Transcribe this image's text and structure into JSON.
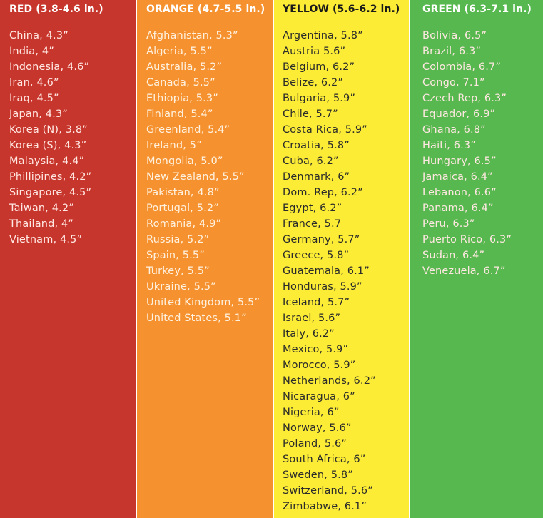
{
  "columns": [
    {
      "id": "red",
      "header": "RED (3.8-4.6 in.)",
      "color": "#c7362c",
      "entries": [
        "China, 4.3”",
        "India, 4”",
        "Indonesia, 4.6”",
        "Iran, 4.6”",
        "Iraq, 4.5”",
        "Japan, 4.3”",
        "Korea (N), 3.8”",
        "Korea (S), 4.3”",
        "Malaysia, 4.4”",
        "Phillipines, 4.2”",
        "Singapore, 4.5”",
        "Taiwan, 4.2”",
        "Thailand, 4”",
        "Vietnam, 4.5”"
      ]
    },
    {
      "id": "orange",
      "header": "ORANGE (4.7-5.5 in.)",
      "color": "#f5922f",
      "entries": [
        "Afghanistan, 5.3”",
        "Algeria, 5.5”",
        "Australia, 5.2”",
        "Canada, 5.5”",
        "Ethiopia, 5.3”",
        "Finland, 5.4”",
        "Greenland, 5.4”",
        "Ireland, 5”",
        "Mongolia, 5.0”",
        "New Zealand, 5.5”",
        "Pakistan, 4.8”",
        "Portugal, 5.2”",
        "Romania, 4.9”",
        "Russia, 5.2”",
        "Spain, 5.5”",
        "Turkey, 5.5”",
        "Ukraine, 5.5”",
        "United Kingdom, 5.5”",
        "United States, 5.1”"
      ]
    },
    {
      "id": "yellow",
      "header": "YELLOW (5.6-6.2 in.)",
      "color": "#fcec35",
      "entries": [
        "Argentina, 5.8”",
        "Austria 5.6”",
        "Belgium, 6.2”",
        "Belize, 6.2”",
        "Bulgaria, 5.9”",
        "Chile, 5.7”",
        "Costa Rica, 5.9”",
        "Croatia, 5.8”",
        "Cuba, 6.2”",
        "Denmark, 6”",
        "Dom. Rep, 6.2”",
        "Egypt, 6.2”",
        "France, 5.7",
        "Germany, 5.7”",
        "Greece, 5.8”",
        "Guatemala, 6.1”",
        "Honduras, 5.9”",
        "Iceland, 5.7”",
        "Israel, 5.6”",
        "Italy, 6.2”",
        "Mexico, 5.9”",
        "Morocco, 5.9”",
        "Netherlands, 6.2”",
        "Nicaragua, 6”",
        "Nigeria, 6”",
        "Norway, 5.6”",
        "Poland, 5.6”",
        "South Africa, 6”",
        "Sweden, 5.8”",
        "Switzerland, 5.6”",
        "Zimbabwe, 6.1”"
      ]
    },
    {
      "id": "green",
      "header": "GREEN (6.3-7.1 in.)",
      "color": "#56b84e",
      "entries": [
        "Bolivia, 6.5”",
        "Brazil, 6.3”",
        "Colombia, 6.7”",
        "Congo, 7.1”",
        "Czech Rep, 6.3”",
        "Equador, 6.9”",
        "Ghana, 6.8”",
        "Haiti, 6.3”",
        "Hungary, 6.5”",
        "Jamaica, 6.4”",
        "Lebanon, 6.6”",
        "Panama, 6.4”",
        "Peru, 6.3”",
        "Puerto Rico, 6.3”",
        "Sudan, 6.4”",
        "Venezuela, 6.7”"
      ]
    }
  ]
}
